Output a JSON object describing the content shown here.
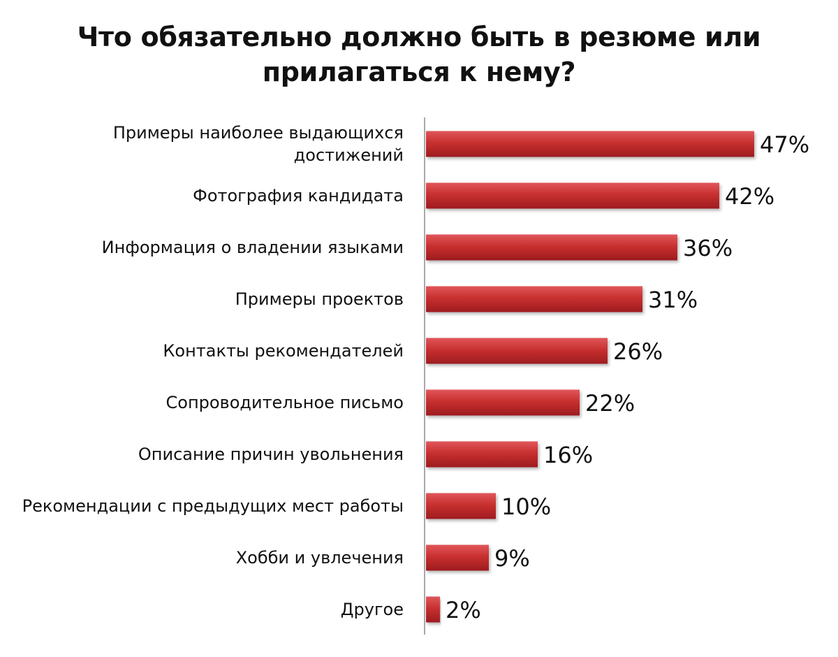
{
  "chart_data": {
    "type": "bar",
    "orientation": "horizontal",
    "title_lines": [
      "Что обязательно должно быть в резюме или",
      "прилагаться к нему?"
    ],
    "categories": [
      [
        "Примеры наиболее выдающихся",
        "достижений"
      ],
      [
        "Фотография кандидата"
      ],
      [
        "Информация о владении языками"
      ],
      [
        "Примеры проектов"
      ],
      [
        "Контакты рекомендателей"
      ],
      [
        "Сопроводительное письмо"
      ],
      [
        "Описание причин увольнения"
      ],
      [
        "Рекомендации с предыдущих мест работы"
      ],
      [
        "Хобби и увлечения"
      ],
      [
        "Другое"
      ]
    ],
    "values": [
      47,
      42,
      36,
      31,
      26,
      22,
      16,
      10,
      9,
      2
    ],
    "value_labels": [
      "47%",
      "42%",
      "36%",
      "31%",
      "26%",
      "22%",
      "16%",
      "10%",
      "9%",
      "2%"
    ],
    "unit": "%",
    "bar_color": "#c0272d",
    "grid": false,
    "legend": "none"
  }
}
